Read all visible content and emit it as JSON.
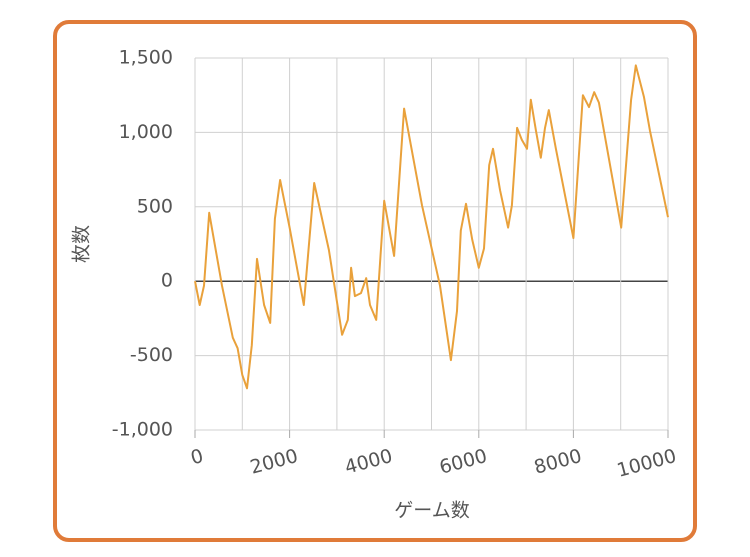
{
  "chart_data": {
    "type": "line",
    "x_label": "ゲーム数",
    "y_label": "枚数",
    "xlim": [
      0,
      10000
    ],
    "ylim": [
      -1000,
      1500
    ],
    "xticks": [
      0,
      2000,
      4000,
      6000,
      8000,
      10000
    ],
    "x_minor_grid": [
      1000,
      3000,
      5000,
      7000,
      9000
    ],
    "yticks": [
      {
        "value": -1000,
        "label": "-1,000"
      },
      -500,
      0,
      500,
      {
        "value": 1000,
        "label": "1,000"
      },
      {
        "value": 1500,
        "label": "1,500"
      }
    ],
    "grid": true,
    "series": [
      {
        "name": "枚数",
        "color": "#e9a13b",
        "x": [
          0,
          100,
          190,
          300,
          570,
          800,
          900,
          1000,
          1100,
          1200,
          1310,
          1460,
          1590,
          1690,
          1800,
          2000,
          2300,
          2520,
          2830,
          3110,
          3230,
          3300,
          3380,
          3510,
          3620,
          3700,
          3830,
          4000,
          4210,
          4420,
          4800,
          5180,
          5410,
          5540,
          5620,
          5730,
          5860,
          6000,
          6110,
          6220,
          6300,
          6450,
          6620,
          6700,
          6810,
          6910,
          7020,
          7100,
          7210,
          7310,
          7400,
          7480,
          7630,
          8000,
          8200,
          8330,
          8440,
          8540,
          9010,
          9220,
          9320,
          9490,
          9620,
          10000
        ],
        "values": [
          0,
          -160,
          -30,
          460,
          -30,
          -380,
          -450,
          -630,
          -720,
          -430,
          150,
          -160,
          -280,
          420,
          680,
          360,
          -160,
          660,
          210,
          -360,
          -260,
          90,
          -100,
          -80,
          20,
          -160,
          -260,
          540,
          170,
          1160,
          510,
          -30,
          -530,
          -200,
          340,
          520,
          280,
          90,
          220,
          780,
          890,
          610,
          360,
          510,
          1030,
          950,
          890,
          1220,
          1010,
          830,
          1030,
          1150,
          890,
          290,
          1250,
          1170,
          1270,
          1200,
          360,
          1220,
          1450,
          1240,
          1010,
          430
        ]
      }
    ]
  }
}
